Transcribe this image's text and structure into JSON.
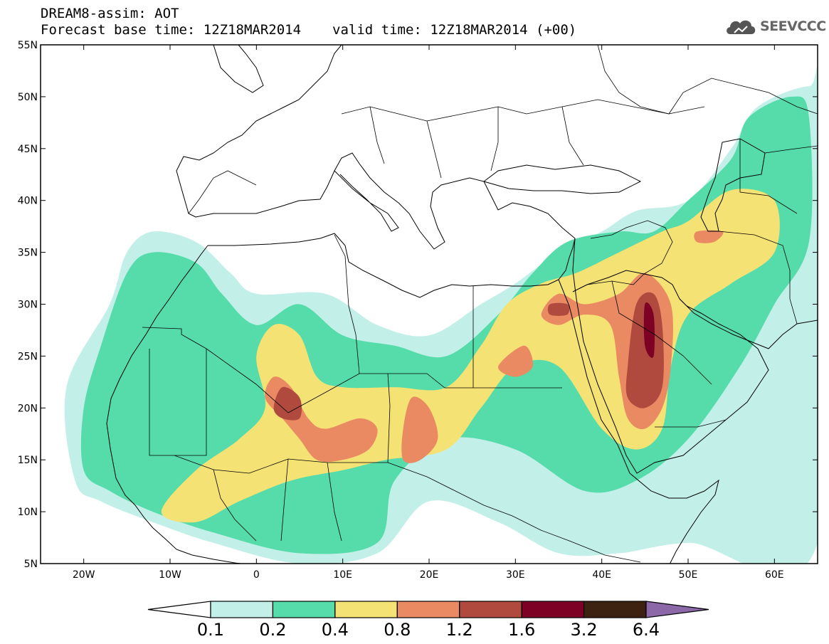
{
  "title": {
    "line1": "DREAM8-assim: AOT",
    "base_time": "Forecast base time: 12Z18MAR2014",
    "valid_time": "valid time: 12Z18MAR2014 (+00)"
  },
  "logo": {
    "icon": "cloud-icon",
    "text": "SEEVCCC"
  },
  "map": {
    "lon_range": [
      -25,
      65
    ],
    "lat_range": [
      5,
      55
    ],
    "lon_ticks": [
      {
        "value": -20,
        "label": "20W"
      },
      {
        "value": -10,
        "label": "10W"
      },
      {
        "value": 0,
        "label": "0"
      },
      {
        "value": 10,
        "label": "10E"
      },
      {
        "value": 20,
        "label": "20E"
      },
      {
        "value": 30,
        "label": "30E"
      },
      {
        "value": 40,
        "label": "40E"
      },
      {
        "value": 50,
        "label": "50E"
      },
      {
        "value": 60,
        "label": "60E"
      }
    ],
    "lat_ticks": [
      {
        "value": 55,
        "label": "55N"
      },
      {
        "value": 50,
        "label": "50N"
      },
      {
        "value": 45,
        "label": "45N"
      },
      {
        "value": 40,
        "label": "40N"
      },
      {
        "value": 35,
        "label": "35N"
      },
      {
        "value": 30,
        "label": "30N"
      },
      {
        "value": 25,
        "label": "25N"
      },
      {
        "value": 20,
        "label": "20N"
      },
      {
        "value": 15,
        "label": "15N"
      },
      {
        "value": 10,
        "label": "10N"
      },
      {
        "value": 5,
        "label": "5N"
      }
    ],
    "aot_regions": [
      {
        "level": 0,
        "pts": [
          [
            -21,
            13
          ],
          [
            -22,
            22
          ],
          [
            -17,
            30
          ],
          [
            -15,
            35
          ],
          [
            -12,
            37
          ],
          [
            -7,
            36
          ],
          [
            -3,
            33
          ],
          [
            0,
            31
          ],
          [
            8,
            31
          ],
          [
            14,
            28
          ],
          [
            20,
            27
          ],
          [
            26,
            30
          ],
          [
            30,
            32
          ],
          [
            35,
            35
          ],
          [
            40,
            37
          ],
          [
            44,
            39
          ],
          [
            50,
            40
          ],
          [
            55,
            45
          ],
          [
            58,
            49
          ],
          [
            64,
            51
          ],
          [
            65,
            49
          ],
          [
            65,
            7
          ],
          [
            50,
            7
          ],
          [
            42,
            6
          ],
          [
            35,
            6
          ],
          [
            28,
            9
          ],
          [
            20,
            11
          ],
          [
            14,
            6
          ],
          [
            5,
            5
          ],
          [
            -5,
            7
          ],
          [
            -12,
            9
          ],
          [
            -18,
            11
          ]
        ]
      },
      {
        "level": 1,
        "pts": [
          [
            -20,
            14
          ],
          [
            -20,
            20
          ],
          [
            -18,
            26
          ],
          [
            -15,
            33
          ],
          [
            -12,
            35
          ],
          [
            -7,
            34
          ],
          [
            -4,
            31
          ],
          [
            0,
            28
          ],
          [
            5,
            30
          ],
          [
            10,
            27
          ],
          [
            16,
            26
          ],
          [
            22,
            25
          ],
          [
            28,
            29
          ],
          [
            32,
            33
          ],
          [
            36,
            36
          ],
          [
            42,
            37
          ],
          [
            46,
            37
          ],
          [
            50,
            40
          ],
          [
            55,
            44
          ],
          [
            57,
            48
          ],
          [
            62,
            50
          ],
          [
            64,
            48
          ],
          [
            64,
            36
          ],
          [
            60,
            30
          ],
          [
            56,
            24
          ],
          [
            50,
            17
          ],
          [
            44,
            13
          ],
          [
            38,
            12
          ],
          [
            30,
            16
          ],
          [
            22,
            17
          ],
          [
            16,
            13
          ],
          [
            14,
            7
          ],
          [
            5,
            6
          ],
          [
            -5,
            8
          ],
          [
            -12,
            10
          ],
          [
            -17,
            12
          ]
        ]
      },
      {
        "level": 2,
        "pts": [
          [
            -11,
            10
          ],
          [
            -7,
            14
          ],
          [
            -2,
            17
          ],
          [
            1,
            20
          ],
          [
            0,
            25
          ],
          [
            2,
            28
          ],
          [
            5,
            27
          ],
          [
            7,
            23
          ],
          [
            10,
            22
          ],
          [
            16,
            22
          ],
          [
            22,
            22
          ],
          [
            26,
            26
          ],
          [
            29,
            30
          ],
          [
            33,
            32
          ],
          [
            37,
            33
          ],
          [
            42,
            35
          ],
          [
            47,
            37
          ],
          [
            50,
            38
          ],
          [
            55,
            41
          ],
          [
            60,
            40
          ],
          [
            60,
            35
          ],
          [
            55,
            32
          ],
          [
            50,
            29
          ],
          [
            48,
            24
          ],
          [
            47,
            18
          ],
          [
            44,
            16
          ],
          [
            40,
            18
          ],
          [
            35,
            24
          ],
          [
            30,
            24
          ],
          [
            26,
            20
          ],
          [
            22,
            16
          ],
          [
            15,
            15
          ],
          [
            10,
            14
          ],
          [
            4,
            13
          ],
          [
            -2,
            11
          ],
          [
            -7,
            9
          ]
        ]
      },
      {
        "level": 3,
        "pts": [
          [
            1,
            21
          ],
          [
            2,
            23
          ],
          [
            4,
            22
          ],
          [
            6,
            19
          ],
          [
            8,
            18
          ],
          [
            12,
            19
          ],
          [
            14,
            18
          ],
          [
            13,
            16
          ],
          [
            10,
            15
          ],
          [
            7,
            15
          ],
          [
            5,
            17
          ],
          [
            3,
            19
          ]
        ]
      },
      {
        "level": 3,
        "pts": [
          [
            17,
            18
          ],
          [
            18,
            21
          ],
          [
            20,
            20
          ],
          [
            21,
            17
          ],
          [
            19,
            15
          ],
          [
            17,
            15
          ]
        ]
      },
      {
        "level": 3,
        "pts": [
          [
            28,
            24
          ],
          [
            31,
            26
          ],
          [
            32,
            24
          ],
          [
            30,
            23
          ]
        ]
      },
      {
        "level": 3,
        "pts": [
          [
            33,
            29
          ],
          [
            35,
            31
          ],
          [
            38,
            30
          ],
          [
            42,
            31
          ],
          [
            45,
            33
          ],
          [
            48,
            30
          ],
          [
            48,
            24
          ],
          [
            47,
            20
          ],
          [
            45,
            18
          ],
          [
            43,
            19
          ],
          [
            42,
            23
          ],
          [
            41,
            28
          ],
          [
            38,
            29
          ],
          [
            35,
            28
          ]
        ]
      },
      {
        "level": 3,
        "pts": [
          [
            51,
            37
          ],
          [
            54,
            37
          ],
          [
            53,
            36
          ],
          [
            51,
            36
          ]
        ]
      },
      {
        "level": 4,
        "pts": [
          [
            2,
            20
          ],
          [
            3,
            22
          ],
          [
            5,
            21
          ],
          [
            5,
            19
          ],
          [
            3,
            19
          ]
        ]
      },
      {
        "level": 4,
        "pts": [
          [
            34,
            30
          ],
          [
            36,
            30
          ],
          [
            36,
            29
          ],
          [
            34,
            29
          ]
        ]
      },
      {
        "level": 4,
        "pts": [
          [
            43,
            24
          ],
          [
            44,
            30
          ],
          [
            46,
            31
          ],
          [
            47,
            28
          ],
          [
            47,
            22
          ],
          [
            45,
            20
          ],
          [
            43,
            21
          ]
        ]
      },
      {
        "level": 5,
        "pts": [
          [
            45,
            26
          ],
          [
            45,
            30
          ],
          [
            46,
            29
          ],
          [
            46,
            25
          ]
        ]
      }
    ]
  },
  "colorbar": {
    "colors": [
      "#ffffff",
      "#c2f0e8",
      "#55dcaa",
      "#f5e274",
      "#e98a63",
      "#b04a3e",
      "#7d0025",
      "#3d2212",
      "#8c68a8"
    ],
    "labels": [
      "0.1",
      "0.2",
      "0.4",
      "0.8",
      "1.2",
      "1.6",
      "3.2",
      "6.4"
    ]
  }
}
